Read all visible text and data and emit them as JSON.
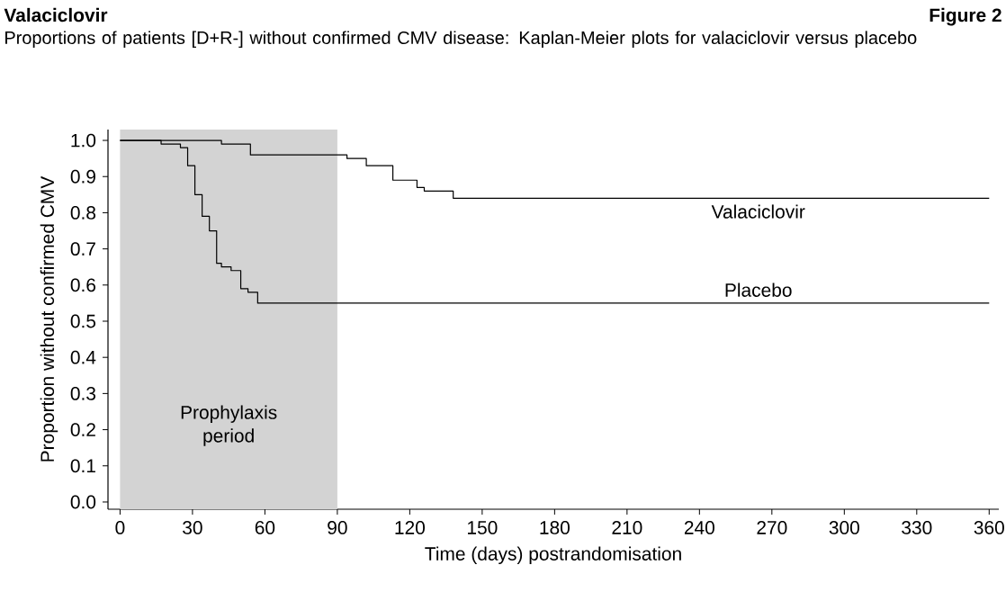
{
  "chart_data": {
    "type": "step",
    "title": "Valaciclovir",
    "subtitle": "Proportions of patients [D+R-] without confirmed CMV disease: Kaplan-Meier plots for valaciclovir versus placebo",
    "annotations": [
      "Figure 2"
    ],
    "xlabel": "Time (days) postrandomisation",
    "ylabel": "Proportion without confirmed CMV",
    "series": [
      {
        "name": "Valaciclovir",
        "color": "#000000",
        "x": [
          0,
          42,
          54,
          94,
          102,
          113,
          123,
          126,
          138,
          360
        ],
        "values": [
          1.0,
          0.99,
          0.96,
          0.95,
          0.93,
          0.89,
          0.87,
          0.86,
          0.84,
          0.84
        ]
      },
      {
        "name": "Placebo",
        "color": "#000000",
        "x": [
          0,
          17,
          25,
          28,
          31,
          34,
          37,
          40,
          42,
          46,
          50,
          53,
          57,
          360
        ],
        "values": [
          1.0,
          0.99,
          0.98,
          0.93,
          0.85,
          0.79,
          0.75,
          0.66,
          0.65,
          0.64,
          0.59,
          0.58,
          0.55,
          0.55
        ]
      }
    ],
    "bands": [
      {
        "axis": "x",
        "from": 0,
        "to": 90,
        "label": "Prophylaxis period",
        "color": "#d3d3d3"
      }
    ],
    "xlim": [
      -5,
      364
    ],
    "ylim": [
      -0.02,
      1.03
    ],
    "xticks": [
      0,
      30,
      60,
      90,
      120,
      150,
      180,
      210,
      240,
      270,
      300,
      330,
      360
    ],
    "yticks": [
      {
        "value": 0,
        "label": "0.0"
      },
      {
        "value": 0.1,
        "label": "0.1"
      },
      {
        "value": 0.2,
        "label": "0.2"
      },
      {
        "value": 0.3,
        "label": "0.3"
      },
      {
        "value": 0.4,
        "label": "0.4"
      },
      {
        "value": 0.5,
        "label": "0.5"
      },
      {
        "value": 0.6,
        "label": "0.6"
      },
      {
        "value": 0.7,
        "label": "0.7"
      },
      {
        "value": 0.8,
        "label": "0.8"
      },
      {
        "value": 0.9,
        "label": "0.9"
      },
      {
        "value": 1,
        "label": "1.0"
      }
    ],
    "grid": false,
    "legend": false,
    "marker": "none",
    "line_style": "solid"
  }
}
